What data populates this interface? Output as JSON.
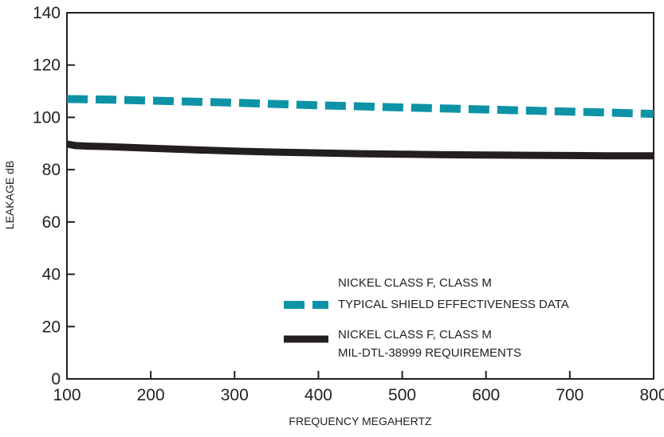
{
  "chart_data": {
    "type": "line",
    "title": "",
    "xlabel": "FREQUENCY MEGAHERTZ",
    "ylabel": "LEAKAGE dB",
    "xlim": [
      100,
      800
    ],
    "ylim": [
      0,
      140
    ],
    "x_ticks": [
      100,
      200,
      300,
      400,
      500,
      600,
      700,
      800
    ],
    "y_ticks": [
      0,
      20,
      40,
      60,
      80,
      100,
      120,
      140
    ],
    "grid": false,
    "legend_position": "bottom-right",
    "series": [
      {
        "name_lines": [
          "NICKEL CLASS F, CLASS M",
          "TYPICAL SHIELD EFFECTIVENESS DATA"
        ],
        "color": "#0e93a6",
        "style": "dashed",
        "x": [
          100,
          150,
          200,
          250,
          300,
          350,
          400,
          450,
          500,
          550,
          600,
          650,
          700,
          750,
          800
        ],
        "y": [
          107,
          106.8,
          106.4,
          106,
          105.6,
          105.1,
          104.6,
          104.2,
          103.8,
          103.4,
          103,
          102.6,
          102.2,
          101.8,
          101.3
        ]
      },
      {
        "name_lines": [
          "NICKEL CLASS F, CLASS M",
          "MIL-DTL-38999 REQUIREMENTS"
        ],
        "color": "#231f20",
        "style": "solid",
        "x": [
          100,
          110,
          125,
          150,
          200,
          250,
          300,
          350,
          400,
          450,
          500,
          550,
          600,
          650,
          700,
          750,
          800
        ],
        "y": [
          89.8,
          89.2,
          89,
          88.8,
          88.2,
          87.6,
          87.1,
          86.7,
          86.4,
          86.1,
          85.9,
          85.7,
          85.6,
          85.5,
          85.4,
          85.3,
          85.3
        ]
      }
    ]
  }
}
